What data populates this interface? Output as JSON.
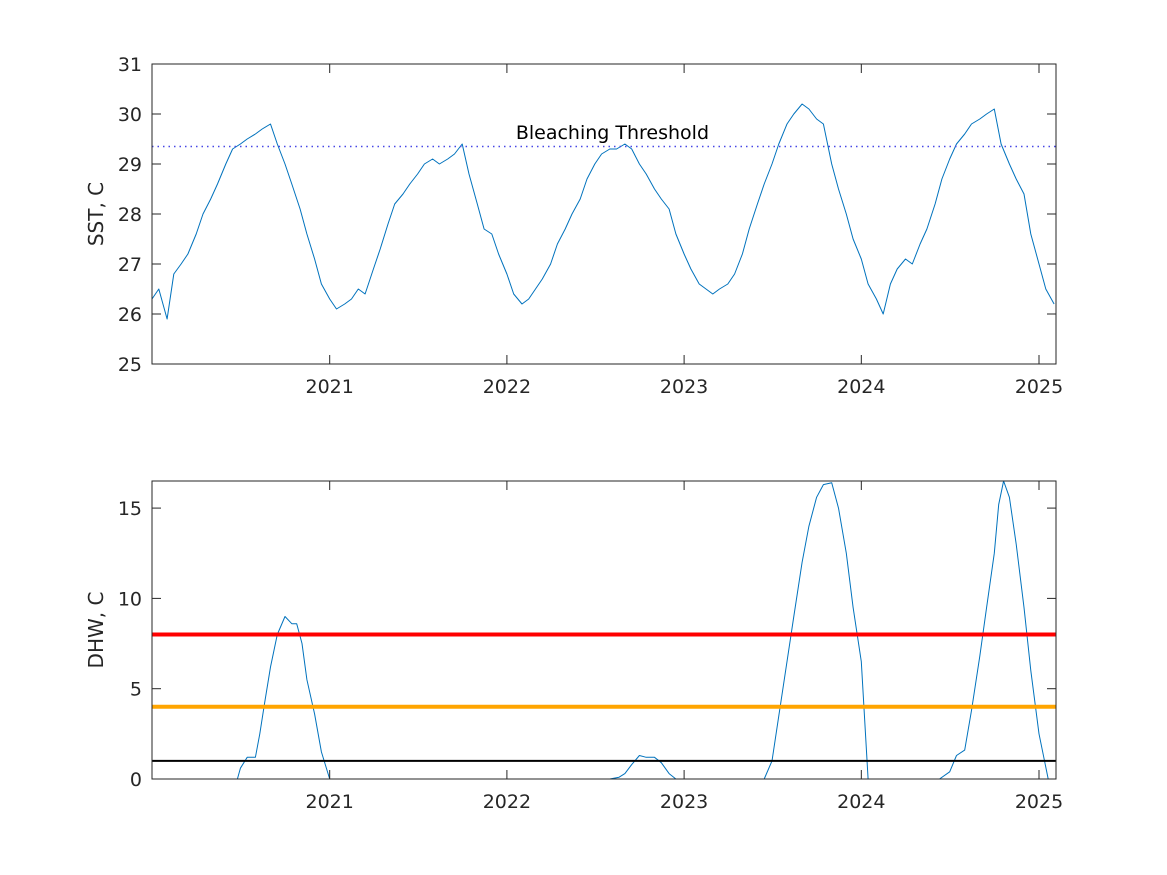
{
  "chart_data": [
    {
      "type": "line",
      "ylabel": "SST, C",
      "xlim": [
        "2020-01-01",
        "2025-02-05"
      ],
      "ylim": [
        25,
        31
      ],
      "x_ticks": [
        "2021",
        "2022",
        "2023",
        "2024",
        "2025"
      ],
      "y_ticks": [
        "25",
        "26",
        "27",
        "28",
        "29",
        "30",
        "31"
      ],
      "grid": false,
      "series": [
        {
          "color": "#0072BD",
          "style": "solid",
          "x": [
            "2020-01-01",
            "2020-01-15",
            "2020-02-01",
            "2020-02-15",
            "2020-03-01",
            "2020-03-15",
            "2020-04-01",
            "2020-04-15",
            "2020-05-01",
            "2020-05-15",
            "2020-06-01",
            "2020-06-15",
            "2020-07-01",
            "2020-07-15",
            "2020-08-01",
            "2020-08-15",
            "2020-09-01",
            "2020-09-15",
            "2020-10-01",
            "2020-10-15",
            "2020-11-01",
            "2020-11-15",
            "2020-12-01",
            "2020-12-15",
            "2021-01-01",
            "2021-01-15",
            "2021-02-01",
            "2021-02-15",
            "2021-03-01",
            "2021-03-15",
            "2021-04-01",
            "2021-04-15",
            "2021-05-01",
            "2021-05-15",
            "2021-06-01",
            "2021-06-15",
            "2021-07-01",
            "2021-07-15",
            "2021-08-01",
            "2021-08-15",
            "2021-09-01",
            "2021-09-15",
            "2021-10-01",
            "2021-10-15",
            "2021-11-01",
            "2021-11-15",
            "2021-12-01",
            "2021-12-15",
            "2022-01-01",
            "2022-01-15",
            "2022-02-01",
            "2022-02-15",
            "2022-03-01",
            "2022-03-15",
            "2022-04-01",
            "2022-04-15",
            "2022-05-01",
            "2022-05-15",
            "2022-06-01",
            "2022-06-15",
            "2022-07-01",
            "2022-07-15",
            "2022-08-01",
            "2022-08-15",
            "2022-09-01",
            "2022-09-15",
            "2022-10-01",
            "2022-10-15",
            "2022-11-01",
            "2022-11-15",
            "2022-12-01",
            "2022-12-15",
            "2023-01-01",
            "2023-01-15",
            "2023-02-01",
            "2023-02-15",
            "2023-03-01",
            "2023-03-15",
            "2023-04-01",
            "2023-04-15",
            "2023-05-01",
            "2023-05-15",
            "2023-06-01",
            "2023-06-15",
            "2023-07-01",
            "2023-07-15",
            "2023-08-01",
            "2023-08-15",
            "2023-09-01",
            "2023-09-15",
            "2023-10-01",
            "2023-10-15",
            "2023-11-01",
            "2023-11-15",
            "2023-12-01",
            "2023-12-15",
            "2024-01-01",
            "2024-01-15",
            "2024-02-01",
            "2024-02-15",
            "2024-03-01",
            "2024-03-15",
            "2024-04-01",
            "2024-04-15",
            "2024-05-01",
            "2024-05-15",
            "2024-06-01",
            "2024-06-15",
            "2024-07-01",
            "2024-07-15",
            "2024-08-01",
            "2024-08-15",
            "2024-09-01",
            "2024-09-15",
            "2024-10-01",
            "2024-10-15",
            "2024-11-01",
            "2024-11-15",
            "2024-12-01",
            "2024-12-15",
            "2025-01-01",
            "2025-01-15",
            "2025-02-01"
          ],
          "y": [
            26.3,
            26.5,
            25.9,
            26.8,
            27.0,
            27.2,
            27.6,
            28.0,
            28.3,
            28.6,
            29.0,
            29.3,
            29.4,
            29.5,
            29.6,
            29.7,
            29.8,
            29.4,
            29.0,
            28.6,
            28.1,
            27.6,
            27.1,
            26.6,
            26.3,
            26.1,
            26.2,
            26.3,
            26.5,
            26.4,
            26.9,
            27.3,
            27.8,
            28.2,
            28.4,
            28.6,
            28.8,
            29.0,
            29.1,
            29.0,
            29.1,
            29.2,
            29.4,
            28.8,
            28.2,
            27.7,
            27.6,
            27.2,
            26.8,
            26.4,
            26.2,
            26.3,
            26.5,
            26.7,
            27.0,
            27.4,
            27.7,
            28.0,
            28.3,
            28.7,
            29.0,
            29.2,
            29.3,
            29.3,
            29.4,
            29.3,
            29.0,
            28.8,
            28.5,
            28.3,
            28.1,
            27.6,
            27.2,
            26.9,
            26.6,
            26.5,
            26.4,
            26.5,
            26.6,
            26.8,
            27.2,
            27.7,
            28.2,
            28.6,
            29.0,
            29.4,
            29.8,
            30.0,
            30.2,
            30.1,
            29.9,
            29.8,
            29.0,
            28.5,
            28.0,
            27.5,
            27.1,
            26.6,
            26.3,
            26.0,
            26.6,
            26.9,
            27.1,
            27.0,
            27.4,
            27.7,
            28.2,
            28.7,
            29.1,
            29.4,
            29.6,
            29.8,
            29.9,
            30.0,
            30.1,
            29.4,
            29.0,
            28.7,
            28.4,
            27.6,
            27.0,
            26.5,
            26.2
          ]
        },
        {
          "name": "Bleaching Threshold",
          "color": "#4747E6",
          "style": "dotted",
          "x": [
            "2020-01-01",
            "2025-02-05"
          ],
          "y": [
            29.35,
            29.35
          ]
        }
      ],
      "annotations": [
        {
          "text": "Bleaching Threshold",
          "x": "2021-12-31",
          "y": 29.6
        }
      ]
    },
    {
      "type": "line",
      "ylabel": "DHW, C",
      "xlim": [
        "2020-01-01",
        "2025-02-05"
      ],
      "ylim": [
        0,
        16.5
      ],
      "x_ticks": [
        "2021",
        "2022",
        "2023",
        "2024",
        "2025"
      ],
      "y_ticks": [
        "0",
        "5",
        "10",
        "15"
      ],
      "grid": false,
      "series": [
        {
          "color": "#0072BD",
          "style": "solid",
          "x": [
            "2020-01-01",
            "2020-06-25",
            "2020-07-01",
            "2020-07-15",
            "2020-08-01",
            "2020-08-10",
            "2020-08-20",
            "2020-09-01",
            "2020-09-15",
            "2020-10-01",
            "2020-10-15",
            "2020-10-25",
            "2020-11-05",
            "2020-11-15",
            "2020-12-01",
            "2020-12-15",
            "2021-01-01",
            "2022-08-01",
            "2022-08-20",
            "2022-09-01",
            "2022-09-15",
            "2022-10-01",
            "2022-10-15",
            "2022-11-01",
            "2022-11-15",
            "2022-12-01",
            "2022-12-15",
            "2022-12-20",
            "2023-06-15",
            "2023-07-01",
            "2023-07-15",
            "2023-08-01",
            "2023-08-15",
            "2023-09-01",
            "2023-09-15",
            "2023-10-01",
            "2023-10-15",
            "2023-11-01",
            "2023-11-15",
            "2023-12-01",
            "2023-12-15",
            "2024-01-01",
            "2024-01-15",
            "2024-06-10",
            "2024-07-01",
            "2024-07-15",
            "2024-08-01",
            "2024-08-15",
            "2024-09-01",
            "2024-09-15",
            "2024-10-01",
            "2024-10-10",
            "2024-10-20",
            "2024-11-01",
            "2024-11-15",
            "2024-12-01",
            "2024-12-15",
            "2025-01-01",
            "2025-01-20",
            "2025-02-05"
          ],
          "y": [
            0,
            0,
            0.6,
            1.2,
            1.2,
            2.5,
            4.2,
            6.2,
            8.0,
            9.0,
            8.6,
            8.6,
            7.5,
            5.5,
            3.6,
            1.5,
            0,
            0,
            0.1,
            0.3,
            0.8,
            1.3,
            1.2,
            1.2,
            0.9,
            0.3,
            0,
            0,
            0,
            1.0,
            3.5,
            6.5,
            9.0,
            12.0,
            14.0,
            15.6,
            16.3,
            16.4,
            15.0,
            12.5,
            9.5,
            6.5,
            0,
            0,
            0.4,
            1.3,
            1.6,
            3.8,
            6.8,
            9.5,
            12.5,
            15.2,
            16.5,
            15.6,
            13.0,
            9.5,
            6.0,
            2.5,
            0,
            0
          ]
        },
        {
          "color": "#FF0000",
          "style": "solid",
          "x": [
            "2020-01-01",
            "2025-02-05"
          ],
          "y": [
            8,
            8
          ]
        },
        {
          "color": "#FFA500",
          "style": "solid",
          "x": [
            "2020-01-01",
            "2025-02-05"
          ],
          "y": [
            4,
            4
          ]
        },
        {
          "color": "#000000",
          "style": "solid",
          "x": [
            "2020-01-01",
            "2025-02-05"
          ],
          "y": [
            1,
            1
          ]
        }
      ]
    }
  ]
}
